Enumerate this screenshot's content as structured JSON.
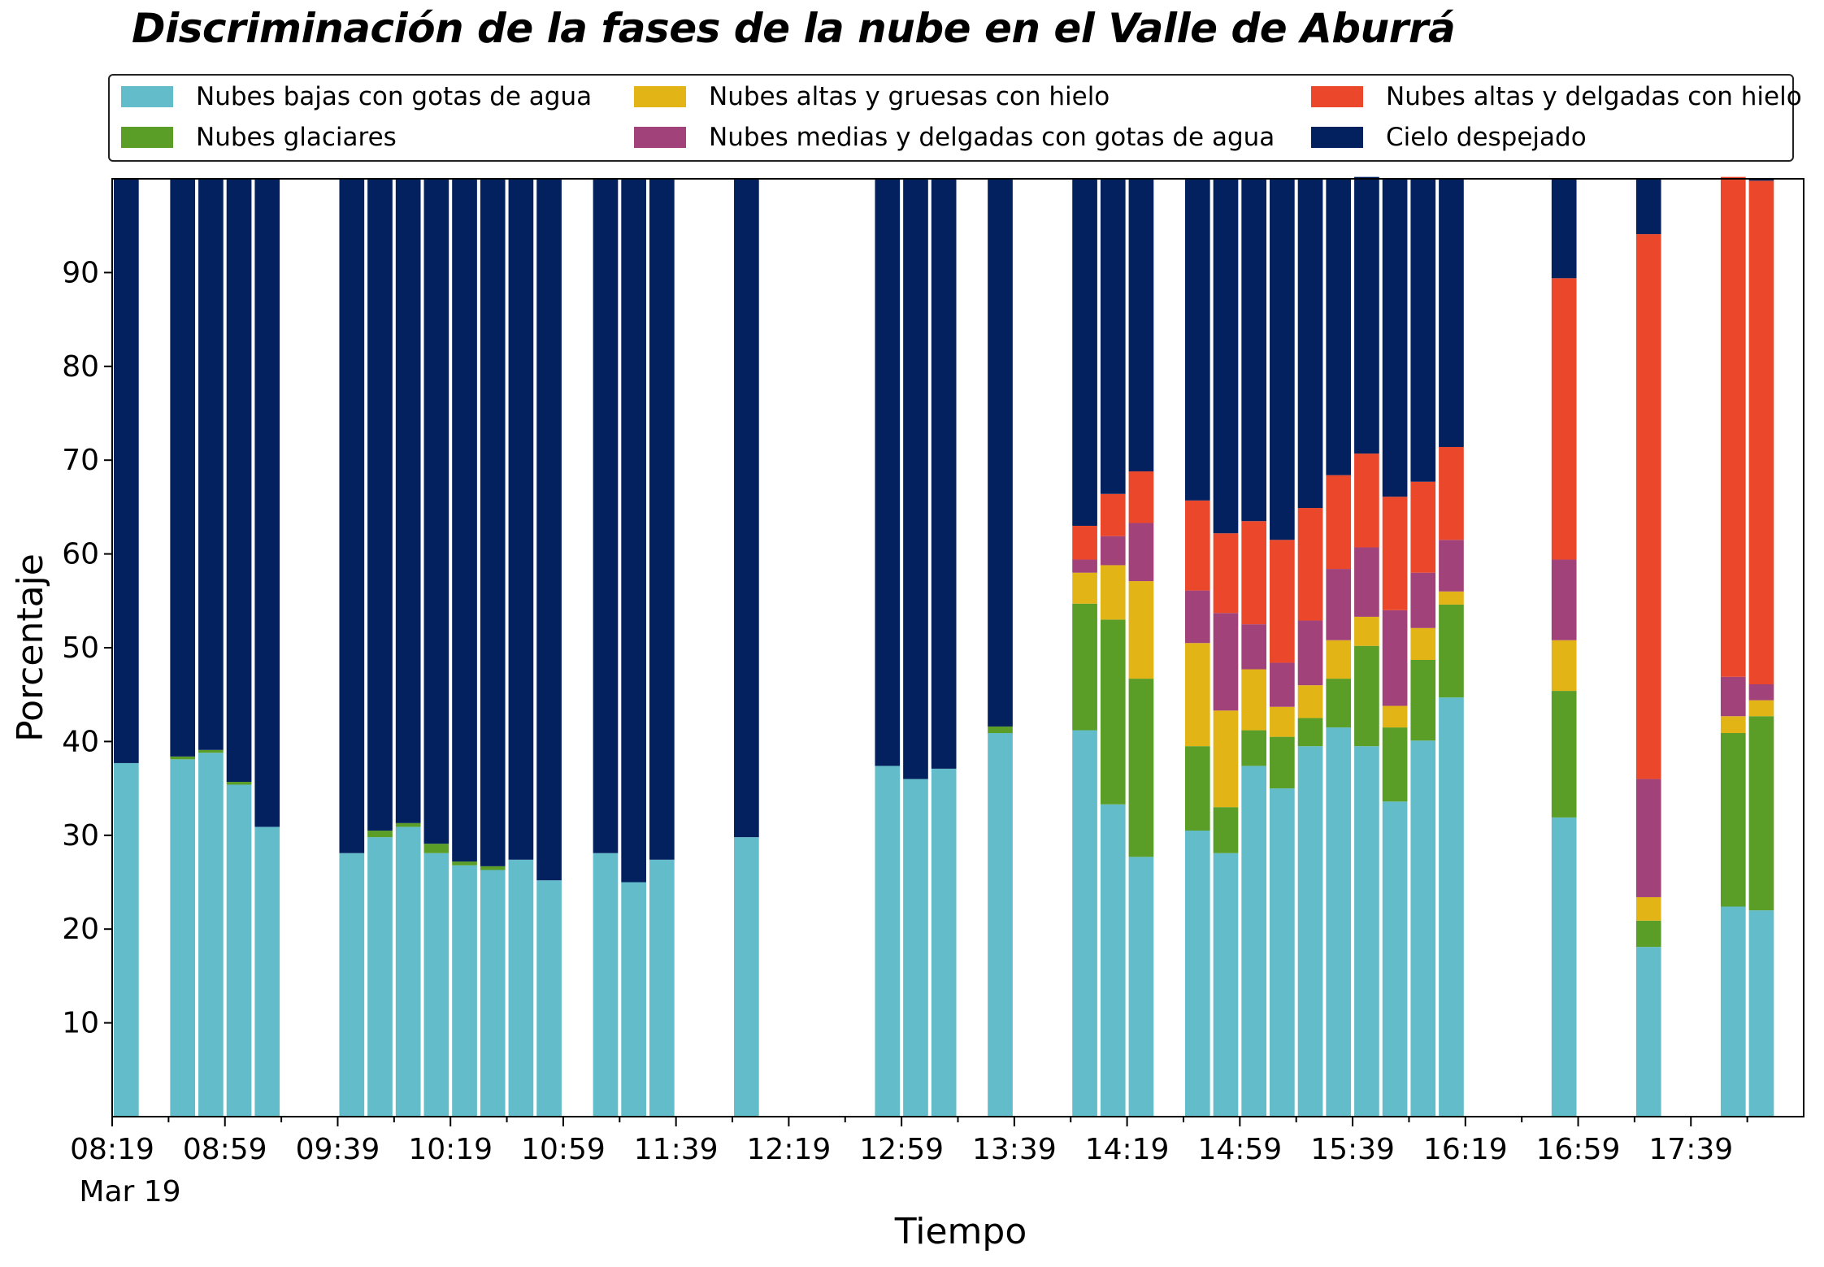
{
  "chart_data": {
    "type": "bar",
    "stacked": true,
    "title": "Discriminación de la fases de la nube en el Valle de Aburrá",
    "xlabel": "Tiempo",
    "ylabel": "Porcentaje",
    "ylim": [
      0,
      100
    ],
    "yticks": [
      10,
      20,
      30,
      40,
      50,
      60,
      70,
      80,
      90
    ],
    "xlim": [
      0,
      59
    ],
    "xtick_labels": [
      "08:19",
      "08:59",
      "09:39",
      "10:19",
      "10:59",
      "11:39",
      "12:19",
      "12:59",
      "13:39",
      "14:19",
      "14:59",
      "15:39",
      "16:19",
      "16:59",
      "17:39"
    ],
    "xtick_date": "Mar 19",
    "grid": false,
    "legend_position": "top",
    "categories": [
      0,
      2,
      3,
      4,
      5,
      8,
      9,
      10,
      11,
      12,
      13,
      14,
      15,
      17,
      18,
      19,
      22,
      27,
      28,
      29,
      31,
      34,
      35,
      36,
      38,
      39,
      40,
      41,
      42,
      43,
      44,
      45,
      46,
      47,
      51,
      54,
      57,
      58
    ],
    "series": [
      {
        "name": "Nubes bajas con gotas de agua",
        "color": "#63BCC9",
        "values": [
          37.7,
          38.1,
          38.8,
          35.4,
          30.9,
          28.1,
          29.8,
          30.9,
          28.1,
          26.8,
          26.3,
          27.4,
          25.2,
          28.1,
          25.0,
          27.4,
          29.8,
          37.4,
          36.0,
          37.1,
          40.9,
          41.2,
          33.3,
          27.7,
          30.5,
          28.1,
          37.4,
          35.0,
          39.5,
          41.5,
          39.5,
          33.6,
          40.1,
          44.7,
          31.9,
          18.1,
          22.4,
          22.0
        ]
      },
      {
        "name": "Nubes glaciares",
        "color": "#5A9E28",
        "values": [
          0,
          0.3,
          0.3,
          0.3,
          0,
          0,
          0.7,
          0.4,
          1.0,
          0.4,
          0.4,
          0,
          0,
          0,
          0,
          0,
          0,
          0,
          0,
          0,
          0.7,
          13.5,
          19.7,
          19.0,
          9.0,
          4.9,
          3.8,
          5.5,
          3.0,
          5.2,
          10.7,
          7.9,
          8.6,
          9.9,
          13.5,
          2.8,
          18.5,
          20.7
        ]
      },
      {
        "name": "Nubes altas y gruesas con hielo",
        "color": "#E3B416",
        "values": [
          0,
          0,
          0,
          0,
          0,
          0,
          0,
          0,
          0,
          0,
          0,
          0,
          0,
          0,
          0,
          0,
          0,
          0,
          0,
          0,
          0,
          3.3,
          5.8,
          10.4,
          11.0,
          10.3,
          6.5,
          3.2,
          3.5,
          4.1,
          3.1,
          2.3,
          3.4,
          1.4,
          5.4,
          2.5,
          1.8,
          1.7
        ]
      },
      {
        "name": "Nubes medias y delgadas con gotas de agua",
        "color": "#A2427A",
        "values": [
          0,
          0,
          0,
          0,
          0,
          0,
          0,
          0,
          0,
          0,
          0,
          0,
          0,
          0,
          0,
          0,
          0,
          0,
          0,
          0,
          0,
          1.4,
          3.1,
          6.2,
          5.6,
          10.4,
          4.8,
          4.7,
          6.9,
          7.6,
          7.4,
          10.2,
          5.9,
          5.5,
          8.6,
          12.6,
          4.2,
          1.7
        ]
      },
      {
        "name": "Nubes altas y delgadas con hielo",
        "color": "#EB472A",
        "values": [
          0,
          0,
          0,
          0,
          0,
          0,
          0,
          0,
          0,
          0,
          0,
          0,
          0,
          0,
          0,
          0,
          0,
          0,
          0,
          0,
          0,
          3.6,
          4.5,
          5.5,
          9.6,
          8.5,
          11.0,
          13.1,
          12.0,
          10.0,
          10.0,
          12.1,
          9.7,
          9.9,
          30.0,
          58.1,
          53.3,
          53.7
        ]
      },
      {
        "name": "Cielo despejado",
        "color": "#04215F",
        "values": [
          62.3,
          61.6,
          60.9,
          64.3,
          69.1,
          71.9,
          69.5,
          68.7,
          70.9,
          72.8,
          73.3,
          72.6,
          74.8,
          71.9,
          75.0,
          72.6,
          70.2,
          62.6,
          64.0,
          62.9,
          58.4,
          37.0,
          33.6,
          31.2,
          34.3,
          37.8,
          36.5,
          38.5,
          35.1,
          31.6,
          29.5,
          33.9,
          32.3,
          28.6,
          10.6,
          5.9,
          0,
          0.2
        ]
      }
    ]
  }
}
